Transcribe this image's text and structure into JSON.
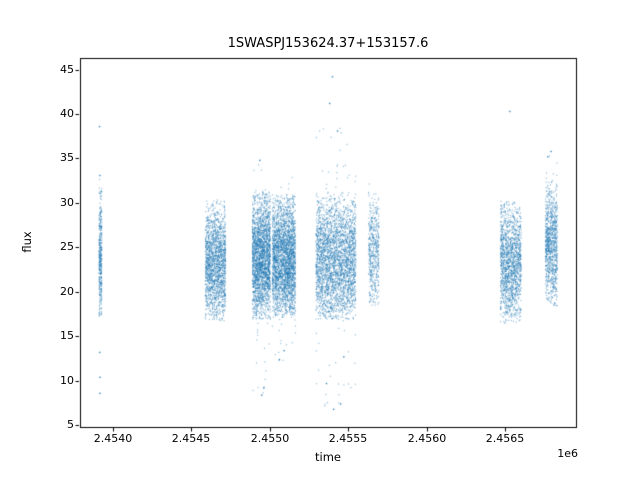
{
  "chart_data": {
    "type": "scatter",
    "title": "1SWASPJ153624.37+153157.6",
    "xlabel": "time",
    "ylabel": "flux",
    "x_offset_label": "1e6",
    "xlim": [
      2453790,
      2456950
    ],
    "ylim": [
      4.8,
      46.3
    ],
    "grid": false,
    "marker_color": "#1f77b4",
    "marker_alpha": 0.5,
    "x_ticks": [
      {
        "value": 2454000,
        "label": "2.4540"
      },
      {
        "value": 2454500,
        "label": "2.4545"
      },
      {
        "value": 2455000,
        "label": "2.4550"
      },
      {
        "value": 2455500,
        "label": "2.4555"
      },
      {
        "value": 2456000,
        "label": "2.4560"
      },
      {
        "value": 2456500,
        "label": "2.4565"
      }
    ],
    "y_ticks": [
      {
        "value": 5,
        "label": "5"
      },
      {
        "value": 10,
        "label": "10"
      },
      {
        "value": 15,
        "label": "15"
      },
      {
        "value": 20,
        "label": "20"
      },
      {
        "value": 25,
        "label": "25"
      },
      {
        "value": 30,
        "label": "30"
      },
      {
        "value": 35,
        "label": "35"
      },
      {
        "value": 40,
        "label": "40"
      },
      {
        "value": 45,
        "label": "45"
      }
    ],
    "clusters": [
      {
        "x_range": [
          2453908,
          2453926
        ],
        "n": 380,
        "y_mean": 24.0,
        "y_sd": 3.4,
        "y_core": [
          17.3,
          32.5
        ],
        "tail_frac": 0.02,
        "tail_range": [
          16.0,
          33.5
        ]
      },
      {
        "x_range": [
          2454585,
          2454715
        ],
        "n": 1700,
        "y_mean": 23.2,
        "y_sd": 3.1,
        "y_core": [
          16.8,
          30.3
        ],
        "tail_frac": 0.01,
        "tail_range": [
          16.3,
          30.8
        ]
      },
      {
        "x_range": [
          2454885,
          2455000
        ],
        "n": 2300,
        "y_mean": 23.8,
        "y_sd": 3.3,
        "y_core": [
          17.0,
          31.3
        ],
        "tail_frac": 0.02,
        "tail_range": [
          8.5,
          35.2
        ]
      },
      {
        "x_range": [
          2455012,
          2455160
        ],
        "n": 2700,
        "y_mean": 23.6,
        "y_sd": 3.3,
        "y_core": [
          17.2,
          31.0
        ],
        "tail_frac": 0.02,
        "tail_range": [
          12.0,
          33.2
        ]
      },
      {
        "x_range": [
          2455290,
          2455545
        ],
        "n": 2900,
        "y_mean": 23.5,
        "y_sd": 3.4,
        "y_core": [
          17.0,
          31.3
        ],
        "tail_frac": 0.025,
        "tail_range": [
          6.9,
          38.5
        ]
      },
      {
        "x_range": [
          2455625,
          2455692
        ],
        "n": 480,
        "y_mean": 24.5,
        "y_sd": 3.0,
        "y_core": [
          18.4,
          31.9
        ],
        "tail_frac": 0.02,
        "tail_range": [
          18.0,
          32.2
        ]
      },
      {
        "x_range": [
          2456465,
          2456598
        ],
        "n": 1500,
        "y_mean": 23.2,
        "y_sd": 3.1,
        "y_core": [
          16.6,
          30.4
        ],
        "tail_frac": 0.01,
        "tail_range": [
          16.4,
          31.0
        ]
      },
      {
        "x_range": [
          2456752,
          2456828
        ],
        "n": 950,
        "y_mean": 25.3,
        "y_sd": 3.3,
        "y_core": [
          18.4,
          33.5
        ],
        "tail_frac": 0.02,
        "tail_range": [
          18.4,
          36.0
        ]
      }
    ],
    "outlier_points": [
      [
        2453914,
        38.6
      ],
      [
        2453916,
        33.1
      ],
      [
        2453915,
        13.2
      ],
      [
        2453917,
        10.4
      ],
      [
        2453916,
        8.6
      ],
      [
        2454935,
        34.8
      ],
      [
        2454947,
        8.4
      ],
      [
        2454960,
        9.2
      ],
      [
        2455060,
        12.4
      ],
      [
        2455090,
        13.4
      ],
      [
        2455398,
        44.2
      ],
      [
        2455380,
        41.2
      ],
      [
        2455430,
        38.1
      ],
      [
        2455405,
        6.8
      ],
      [
        2455450,
        7.4
      ],
      [
        2455360,
        9.7
      ],
      [
        2455470,
        12.7
      ],
      [
        2456528,
        40.3
      ],
      [
        2456790,
        35.8
      ],
      [
        2456770,
        35.2
      ]
    ]
  }
}
